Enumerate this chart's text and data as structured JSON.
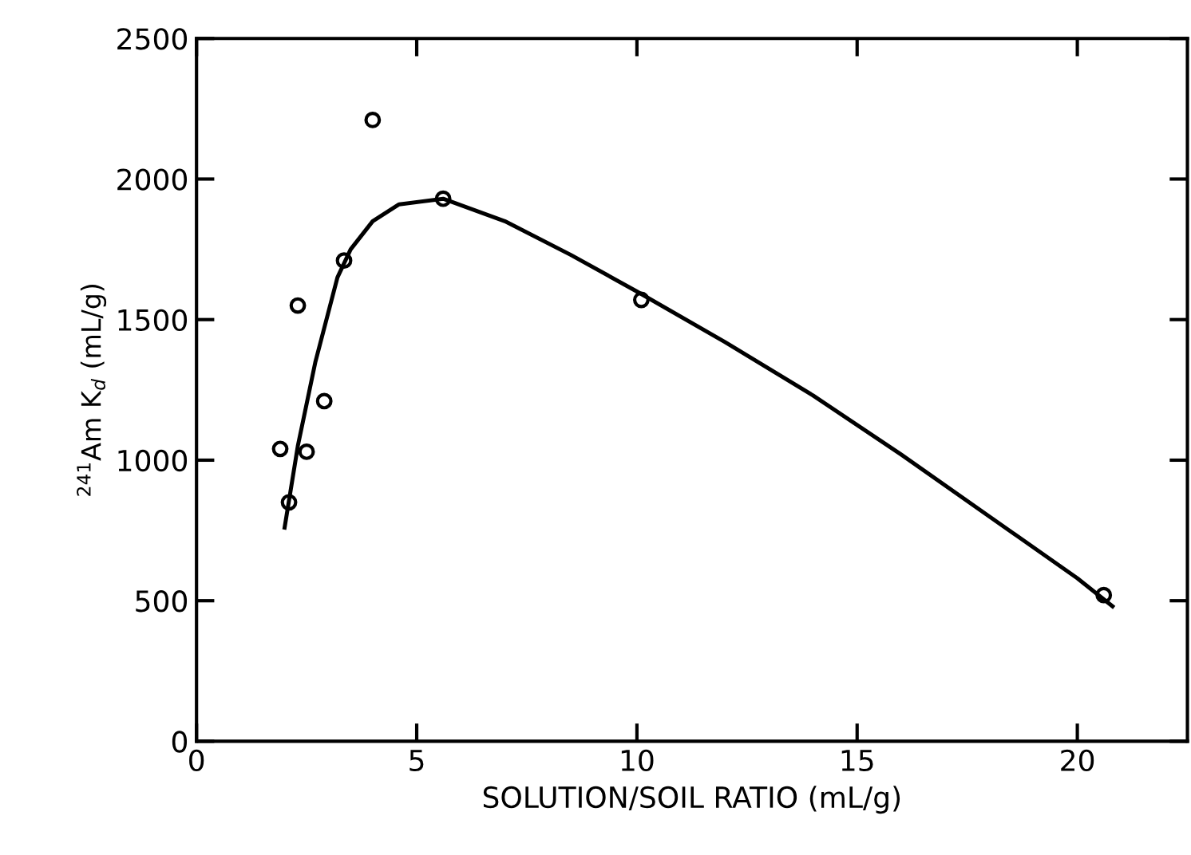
{
  "chart_data": {
    "type": "scatter",
    "xlabel": "SOLUTION/SOIL RATIO (mL/g)",
    "ylabel": "$^{241}$Am K$_{d}$ (mL/g)",
    "xlim": [
      0,
      22.5
    ],
    "ylim": [
      0,
      2500
    ],
    "xticks": [
      0,
      5,
      10,
      15,
      20
    ],
    "yticks": [
      0,
      500,
      1000,
      1500,
      2000,
      2500
    ],
    "grid": false,
    "marker": "circle",
    "series": [
      {
        "color": "#000000",
        "x": [
          1.9,
          2.1,
          2.3,
          2.5,
          2.9,
          3.35,
          4.0,
          5.6,
          10.1,
          20.6
        ],
        "values": [
          1040,
          850,
          1550,
          1030,
          1210,
          1710,
          2210,
          1930,
          1570,
          520
        ]
      },
      {
        "type": "line",
        "color": "#000000",
        "marker": "none",
        "line_style": "solid",
        "x": [
          2.0,
          2.3,
          2.7,
          3.2,
          3.5,
          4.0,
          4.6,
          5.6,
          7,
          8.5,
          10,
          12,
          14,
          16,
          18,
          20,
          20.8
        ],
        "values": [
          760,
          1050,
          1350,
          1650,
          1750,
          1850,
          1910,
          1930,
          1850,
          1730,
          1600,
          1420,
          1230,
          1020,
          800,
          580,
          480
        ]
      }
    ]
  }
}
